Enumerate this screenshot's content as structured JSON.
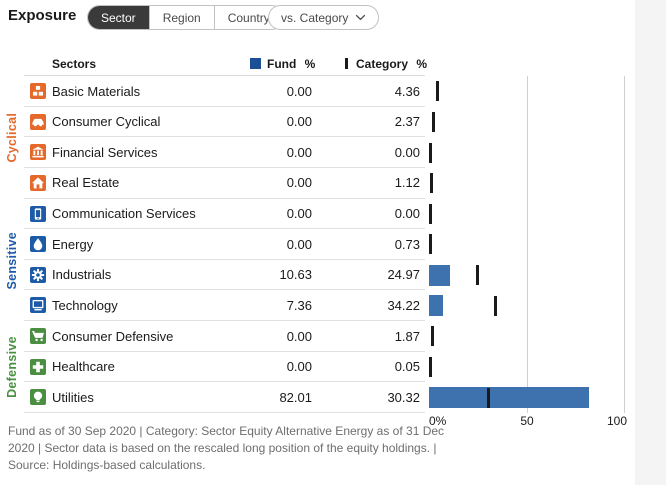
{
  "header": {
    "title": "Exposure",
    "tabs": [
      {
        "label": "Sector",
        "selected": true
      },
      {
        "label": "Region",
        "selected": false
      },
      {
        "label": "Country",
        "selected": false
      }
    ],
    "comparison_label": "vs. Category"
  },
  "table": {
    "columns": {
      "sectors": "Sectors",
      "fund": "Fund %",
      "category": "Category %"
    },
    "groups": [
      {
        "name": "Cyclical",
        "color": "#e5692b",
        "rows": 4
      },
      {
        "name": "Sensitive",
        "color": "#1d5ba8",
        "rows": 4
      },
      {
        "name": "Defensive",
        "color": "#4a8f41",
        "rows": 3
      }
    ],
    "rows": [
      {
        "label": "Basic Materials",
        "icon": "cubes-icon",
        "group": "Cyclical",
        "fund": "0.00",
        "category": "4.36"
      },
      {
        "label": "Consumer Cyclical",
        "icon": "car-icon",
        "group": "Cyclical",
        "fund": "0.00",
        "category": "2.37"
      },
      {
        "label": "Financial Services",
        "icon": "bank-icon",
        "group": "Cyclical",
        "fund": "0.00",
        "category": "0.00"
      },
      {
        "label": "Real Estate",
        "icon": "house-icon",
        "group": "Cyclical",
        "fund": "0.00",
        "category": "1.12"
      },
      {
        "label": "Communication Services",
        "icon": "phone-icon",
        "group": "Sensitive",
        "fund": "0.00",
        "category": "0.00"
      },
      {
        "label": "Energy",
        "icon": "droplet-icon",
        "group": "Sensitive",
        "fund": "0.00",
        "category": "0.73"
      },
      {
        "label": "Industrials",
        "icon": "gear-icon",
        "group": "Sensitive",
        "fund": "10.63",
        "category": "24.97"
      },
      {
        "label": "Technology",
        "icon": "monitor-icon",
        "group": "Sensitive",
        "fund": "7.36",
        "category": "34.22"
      },
      {
        "label": "Consumer Defensive",
        "icon": "cart-icon",
        "group": "Defensive",
        "fund": "0.00",
        "category": "1.87"
      },
      {
        "label": "Healthcare",
        "icon": "cross-icon",
        "group": "Defensive",
        "fund": "0.00",
        "category": "0.05"
      },
      {
        "label": "Utilities",
        "icon": "bulb-icon",
        "group": "Defensive",
        "fund": "82.01",
        "category": "30.32"
      }
    ]
  },
  "chart_data": {
    "type": "bar",
    "orientation": "horizontal",
    "categories": [
      "Basic Materials",
      "Consumer Cyclical",
      "Financial Services",
      "Real Estate",
      "Communication Services",
      "Energy",
      "Industrials",
      "Technology",
      "Consumer Defensive",
      "Healthcare",
      "Utilities"
    ],
    "series": [
      {
        "name": "Fund %",
        "style": "bar",
        "color": "#3d72ae",
        "values": [
          0.0,
          0.0,
          0.0,
          0.0,
          0.0,
          0.0,
          10.63,
          7.36,
          0.0,
          0.0,
          82.01
        ]
      },
      {
        "name": "Category %",
        "style": "tick",
        "color": "#1a1a1a",
        "values": [
          4.36,
          2.37,
          0.0,
          1.12,
          0.0,
          0.73,
          24.97,
          34.22,
          1.87,
          0.05,
          30.32
        ]
      }
    ],
    "xlim": [
      0,
      100
    ],
    "tick_labels": [
      "0%",
      "50",
      "100"
    ],
    "gridlines_at": [
      50,
      100
    ],
    "legend_position": "top"
  },
  "axis": {
    "t0": "0%",
    "t50": "50",
    "t100": "100"
  },
  "footnote": "Fund as of 30 Sep 2020 | Category: Sector Equity Alternative Energy as of 31 Dec 2020 | Sector data is based on the rescaled long position of the equity holdings. | Source: Holdings-based calculations."
}
